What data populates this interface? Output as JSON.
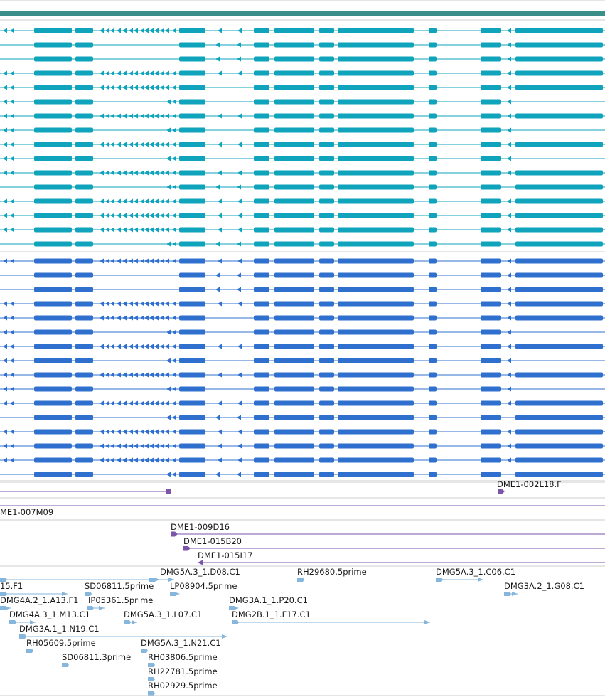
{
  "colors": {
    "topbar": "#3a8f8a",
    "track1": "#0fa3bc",
    "track2": "#2f6fcd",
    "cdna": "#7a55a8",
    "est": "#86b6dc",
    "separator": "#cccccc"
  },
  "gene_tracks": [
    {
      "name": "transcripts-a",
      "color_key": "track1",
      "transcripts": [
        {
          "start": 0,
          "end": 851,
          "exon_set": "full"
        },
        {
          "start": 0,
          "end": 851,
          "exon_set": "noleft"
        },
        {
          "start": 0,
          "end": 851,
          "exon_set": "noleft"
        },
        {
          "start": 0,
          "end": 851,
          "exon_set": "full"
        },
        {
          "start": 0,
          "end": 851,
          "exon_set": "mid"
        },
        {
          "start": 0,
          "end": 851,
          "exon_set": "right-only"
        },
        {
          "start": 0,
          "end": 851,
          "exon_set": "full"
        },
        {
          "start": 0,
          "end": 851,
          "exon_set": "right-only"
        },
        {
          "start": 0,
          "end": 851,
          "exon_set": "full"
        },
        {
          "start": 0,
          "end": 851,
          "exon_set": "right-only"
        },
        {
          "start": 0,
          "end": 851,
          "exon_set": "full"
        },
        {
          "start": 0,
          "end": 851,
          "exon_set": "short"
        },
        {
          "start": 0,
          "end": 851,
          "exon_set": "full"
        },
        {
          "start": 0,
          "end": 851,
          "exon_set": "full"
        },
        {
          "start": 0,
          "end": 851,
          "exon_set": "full"
        },
        {
          "start": 0,
          "end": 851,
          "exon_set": "short"
        }
      ]
    },
    {
      "name": "transcripts-b",
      "color_key": "track2",
      "transcripts": [
        {
          "start": 0,
          "end": 851,
          "exon_set": "full"
        },
        {
          "start": 0,
          "end": 851,
          "exon_set": "noleft"
        },
        {
          "start": 0,
          "end": 851,
          "exon_set": "noleft"
        },
        {
          "start": 0,
          "end": 851,
          "exon_set": "full"
        },
        {
          "start": 0,
          "end": 851,
          "exon_set": "mid"
        },
        {
          "start": 0,
          "end": 851,
          "exon_set": "right-only"
        },
        {
          "start": 0,
          "end": 851,
          "exon_set": "full"
        },
        {
          "start": 0,
          "end": 851,
          "exon_set": "right-only"
        },
        {
          "start": 0,
          "end": 851,
          "exon_set": "full"
        },
        {
          "start": 0,
          "end": 851,
          "exon_set": "right-only"
        },
        {
          "start": 0,
          "end": 851,
          "exon_set": "full"
        },
        {
          "start": 0,
          "end": 851,
          "exon_set": "short"
        },
        {
          "start": 0,
          "end": 851,
          "exon_set": "full"
        },
        {
          "start": 0,
          "end": 851,
          "exon_set": "full"
        },
        {
          "start": 0,
          "end": 851,
          "exon_set": "full"
        },
        {
          "start": 0,
          "end": 851,
          "exon_set": "short"
        }
      ]
    }
  ],
  "cdna_clones": [
    {
      "label": "",
      "start": 0,
      "end": 240,
      "dir": "left-end"
    },
    {
      "label": "DME1-002L18.F",
      "start": 700,
      "end": 710,
      "dir": "right"
    },
    {
      "label": "ME1-007M09",
      "start": 0,
      "end": 851,
      "dir": "none"
    },
    {
      "label": "DME1-009D16",
      "start": 240,
      "end": 851,
      "dir": "right"
    },
    {
      "label": "DME1-015B20",
      "start": 258,
      "end": 851,
      "dir": "right"
    },
    {
      "label": "DME1-015I17",
      "start": 278,
      "end": 851,
      "dir": "left"
    }
  ],
  "est_labels": [
    {
      "text": "DMG5A.3_1.D08.C1"
    },
    {
      "text": "RH29680.5prime"
    },
    {
      "text": "DMG5A.3_1.C06.C1"
    },
    {
      "text": "15.F1"
    },
    {
      "text": "SD06811.5prime"
    },
    {
      "text": "LP08904.5prime"
    },
    {
      "text": "DMG3A.2_1.G08.C1"
    },
    {
      "text": "DMG4A.2_1.A13.F1"
    },
    {
      "text": "IP05361.5prime"
    },
    {
      "text": "DMG3A.1_1.P20.C1"
    },
    {
      "text": "DMG4A.3_1.M13.C1"
    },
    {
      "text": "DMG5A.3_1.L07.C1"
    },
    {
      "text": "DMG2B.1_1.F17.C1"
    },
    {
      "text": "DMG3A.1_1.N19.C1"
    },
    {
      "text": "RH05609.5prime"
    },
    {
      "text": "DMG5A.3_1.N21.C1"
    },
    {
      "text": "SD06811.3prime"
    },
    {
      "text": "RH03806.5prime"
    },
    {
      "text": "RH22781.5prime"
    },
    {
      "text": "RH02929.5prime"
    }
  ]
}
